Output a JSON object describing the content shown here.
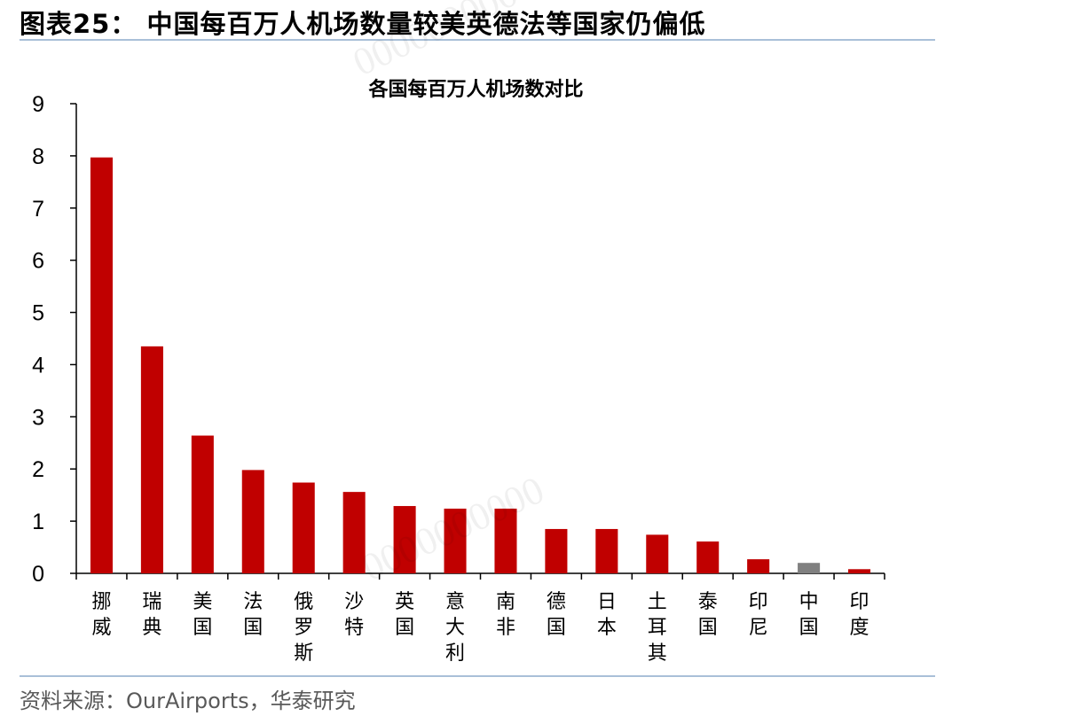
{
  "figure_title": "图表25：  中国每百万人机场数量较美英德法等国家仍偏低",
  "source": "资料来源：OurAirports，华泰研究",
  "watermark_text": "0000000000",
  "chart_data": {
    "type": "bar",
    "title": "各国每百万人机场数对比",
    "xlabel": "",
    "ylabel": "",
    "ylim": [
      0,
      9
    ],
    "yticks": [
      0,
      1,
      2,
      3,
      4,
      5,
      6,
      7,
      8,
      9
    ],
    "grid": false,
    "categories": [
      "挪威",
      "瑞典",
      "美国",
      "法国",
      "俄罗斯",
      "沙特",
      "英国",
      "意大利",
      "南非",
      "德国",
      "日本",
      "土耳其",
      "泰国",
      "印尼",
      "中国",
      "印度"
    ],
    "values": [
      7.97,
      4.35,
      2.64,
      1.98,
      1.74,
      1.56,
      1.29,
      1.24,
      1.24,
      0.85,
      0.85,
      0.74,
      0.61,
      0.27,
      0.2,
      0.08
    ],
    "colors": [
      "#c00000",
      "#c00000",
      "#c00000",
      "#c00000",
      "#c00000",
      "#c00000",
      "#c00000",
      "#c00000",
      "#c00000",
      "#c00000",
      "#c00000",
      "#c00000",
      "#c00000",
      "#c00000",
      "#808080",
      "#c00000"
    ]
  }
}
